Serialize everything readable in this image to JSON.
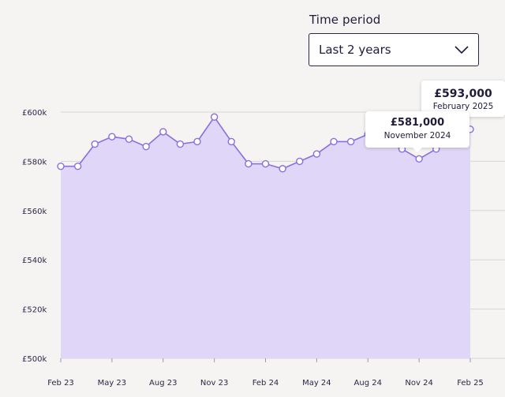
{
  "time_period": {
    "label": "Time period",
    "selected": "Last 2 years"
  },
  "tooltips": {
    "february_2025": {
      "value": "£593,000",
      "date": "February 2025"
    },
    "november_2024": {
      "value": "£581,000",
      "date": "November 2024"
    }
  },
  "colors": {
    "line": "#8b6fdf",
    "fill": "#e0d6f8",
    "grid": "#d8d6d2",
    "text": "#1f1c3a"
  },
  "chart_data": {
    "type": "area",
    "x": [
      "Feb 23",
      "Mar 23",
      "Apr 23",
      "May 23",
      "Jun 23",
      "Jul 23",
      "Aug 23",
      "Sep 23",
      "Oct 23",
      "Nov 23",
      "Dec 23",
      "Jan 24",
      "Feb 24",
      "Mar 24",
      "Apr 24",
      "May 24",
      "Jun 24",
      "Jul 24",
      "Aug 24",
      "Sep 24",
      "Oct 24",
      "Nov 24",
      "Dec 24",
      "Jan 25",
      "Feb 25"
    ],
    "values": [
      578000,
      578000,
      587000,
      590000,
      589000,
      586000,
      592000,
      587000,
      588000,
      598000,
      588000,
      579000,
      579000,
      577000,
      580000,
      583000,
      588000,
      588000,
      591000,
      588000,
      585000,
      581000,
      585000,
      589000,
      593000
    ],
    "xticks": [
      "Feb 23",
      "May 23",
      "Aug 23",
      "Nov 23",
      "Feb 24",
      "May 24",
      "Aug 24",
      "Nov 24",
      "Feb 25"
    ],
    "yticks": [
      {
        "value": 500000,
        "label": "£500k"
      },
      {
        "value": 520000,
        "label": "£520k"
      },
      {
        "value": 540000,
        "label": "£540k"
      },
      {
        "value": 560000,
        "label": "£560k"
      },
      {
        "value": 580000,
        "label": "£580k"
      },
      {
        "value": 600000,
        "label": "£600k"
      }
    ],
    "ylim": [
      500000,
      600000
    ],
    "grid": true
  }
}
